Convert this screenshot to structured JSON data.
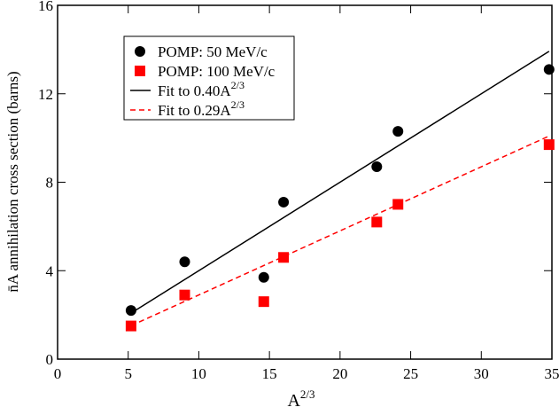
{
  "chart_data": {
    "type": "scatter",
    "xlabel": "A",
    "xlabel_sup": "2/3",
    "ylabel": "n̄A annihilation cross section (barns)",
    "xlim": [
      0,
      35
    ],
    "xticks": [
      0,
      5,
      10,
      15,
      20,
      25,
      30,
      35
    ],
    "ylim": [
      0,
      16
    ],
    "yticks": [
      0,
      4,
      8,
      12,
      16
    ],
    "grid": false,
    "series": [
      {
        "name": "POMP: 50 MeV/c",
        "color": "#000000",
        "mode": "markers",
        "marker": "circle",
        "x": [
          5.2,
          9.0,
          14.6,
          16.0,
          22.6,
          24.1,
          34.8
        ],
        "values": [
          2.2,
          4.4,
          3.7,
          7.1,
          8.7,
          10.3,
          13.1
        ]
      },
      {
        "name": "POMP: 100 MeV/c",
        "color": "#ff0000",
        "mode": "markers",
        "marker": "square",
        "x": [
          5.2,
          9.0,
          14.6,
          16.0,
          22.6,
          24.1,
          34.8
        ],
        "values": [
          1.5,
          2.9,
          2.6,
          4.6,
          6.2,
          7.0,
          9.7
        ]
      },
      {
        "name": "Fit to 0.40A",
        "name_sup": "2/3",
        "color": "#000000",
        "mode": "line",
        "dashed": false,
        "x": [
          5.2,
          34.8
        ],
        "values": [
          2.08,
          13.92
        ]
      },
      {
        "name": "Fit to 0.29A",
        "name_sup": "2/3",
        "color": "#ff0000",
        "mode": "line",
        "dashed": true,
        "x": [
          5.2,
          34.8
        ],
        "values": [
          1.51,
          10.09
        ]
      }
    ]
  }
}
